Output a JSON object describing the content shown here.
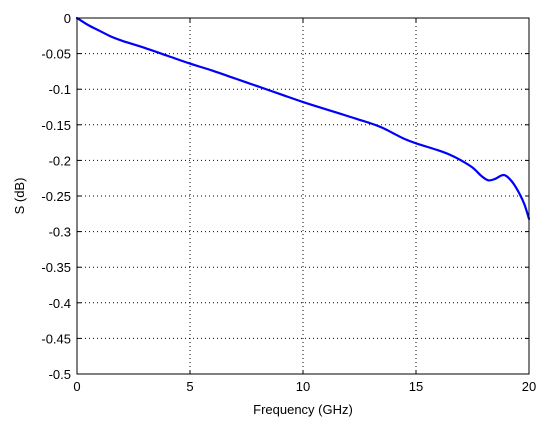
{
  "chart_data": {
    "type": "line",
    "xlabel": "Frequency (GHz)",
    "ylabel": "S (dB)",
    "xlim": [
      0,
      20
    ],
    "ylim": [
      -0.5,
      0
    ],
    "grid": true,
    "xticks": [
      0,
      5,
      10,
      15,
      20
    ],
    "xtick_labels": [
      "0",
      "5",
      "10",
      "15",
      "20"
    ],
    "yticks": [
      0,
      -0.05,
      -0.1,
      -0.15,
      -0.2,
      -0.25,
      -0.3,
      -0.35,
      -0.4,
      -0.45,
      -0.5
    ],
    "ytick_labels": [
      "0",
      "-0.05",
      "-0.1",
      "-0.15",
      "-0.2",
      "-0.25",
      "-0.3",
      "-0.35",
      "-0.4",
      "-0.45",
      "-0.5"
    ],
    "series": [
      {
        "color": "#0000ff",
        "x": [
          0,
          0.5,
          1,
          1.5,
          2,
          3,
          4,
          5,
          6,
          7,
          8,
          9,
          10,
          11,
          12,
          13,
          13.5,
          14,
          14.5,
          15,
          16,
          16.5,
          17,
          17.5,
          17.9,
          18.2,
          18.5,
          18.8,
          19.0,
          19.3,
          19.6,
          19.8,
          20
        ],
        "y": [
          0,
          -0.01,
          -0.018,
          -0.026,
          -0.032,
          -0.042,
          -0.053,
          -0.064,
          -0.074,
          -0.085,
          -0.096,
          -0.107,
          -0.118,
          -0.128,
          -0.138,
          -0.148,
          -0.154,
          -0.162,
          -0.17,
          -0.176,
          -0.186,
          -0.192,
          -0.2,
          -0.21,
          -0.222,
          -0.228,
          -0.226,
          -0.221,
          -0.222,
          -0.232,
          -0.248,
          -0.262,
          -0.282
        ]
      }
    ]
  }
}
